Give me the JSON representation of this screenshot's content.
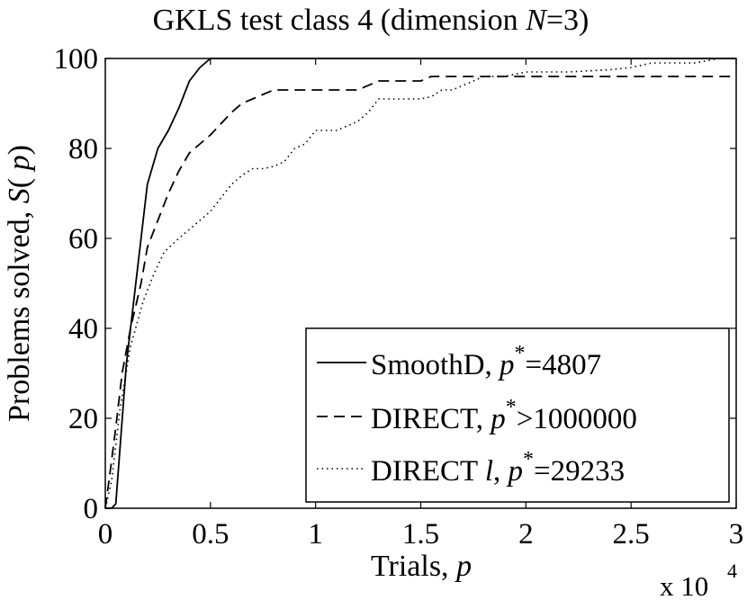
{
  "chart_data": {
    "type": "line",
    "title": {
      "prefix": "GKLS test class 4 (dimension  ",
      "var": "N",
      "suffix": "=3)"
    },
    "xlabel": {
      "text": "Trials,  ",
      "var": "p"
    },
    "ylabel": {
      "text": "Problems solved,  ",
      "func": "S",
      "open": "( ",
      "var": "p",
      "close": ")"
    },
    "x_multiplier": {
      "text": "x 10",
      "exp": "4"
    },
    "xlim": [
      0,
      30000
    ],
    "ylim": [
      0,
      100
    ],
    "xticks": [
      {
        "value": 0,
        "label": "0"
      },
      {
        "value": 5000,
        "label": "0.5"
      },
      {
        "value": 10000,
        "label": "1"
      },
      {
        "value": 15000,
        "label": "1.5"
      },
      {
        "value": 20000,
        "label": "2"
      },
      {
        "value": 25000,
        "label": "2.5"
      },
      {
        "value": 30000,
        "label": "3"
      }
    ],
    "yticks": [
      {
        "value": 0,
        "label": "0"
      },
      {
        "value": 20,
        "label": "20"
      },
      {
        "value": 40,
        "label": "40"
      },
      {
        "value": 60,
        "label": "60"
      },
      {
        "value": 80,
        "label": "80"
      },
      {
        "value": 100,
        "label": "100"
      }
    ],
    "grid": false,
    "legend_position": "bottom-right",
    "series": [
      {
        "name": "SmoothD",
        "legend": {
          "prefix": "SmoothD,  ",
          "var": "p",
          "sup": "*",
          "suffix": "=4807"
        },
        "style": "solid",
        "color": "#000000",
        "points": [
          [
            0,
            0
          ],
          [
            300,
            0
          ],
          [
            500,
            1
          ],
          [
            1000,
            32
          ],
          [
            1500,
            52
          ],
          [
            2000,
            72
          ],
          [
            2500,
            80
          ],
          [
            3000,
            84
          ],
          [
            3500,
            89
          ],
          [
            4000,
            95
          ],
          [
            4500,
            98
          ],
          [
            5000,
            100
          ],
          [
            30000,
            100
          ]
        ]
      },
      {
        "name": "DIRECT",
        "legend": {
          "prefix": "DIRECT,  ",
          "var": "p",
          "sup": "*",
          "suffix": ">1000000"
        },
        "style": "dashed",
        "color": "#000000",
        "points": [
          [
            0,
            0
          ],
          [
            200,
            7
          ],
          [
            500,
            18
          ],
          [
            800,
            30
          ],
          [
            1200,
            40
          ],
          [
            1700,
            50
          ],
          [
            2000,
            58
          ],
          [
            2500,
            64
          ],
          [
            3000,
            70
          ],
          [
            3500,
            75
          ],
          [
            4000,
            79
          ],
          [
            4500,
            81
          ],
          [
            5000,
            83
          ],
          [
            6000,
            88
          ],
          [
            6500,
            90
          ],
          [
            7000,
            91
          ],
          [
            8000,
            93
          ],
          [
            9000,
            93
          ],
          [
            10000,
            93
          ],
          [
            11000,
            93
          ],
          [
            12000,
            93
          ],
          [
            13000,
            95
          ],
          [
            15000,
            95
          ],
          [
            15500,
            96
          ],
          [
            30000,
            96
          ]
        ]
      },
      {
        "name": "DIRECT l",
        "legend": {
          "prefix": "DIRECT ",
          "var": "l",
          "mid": ",  ",
          "var2": "p",
          "sup": "*",
          "suffix": "=29233"
        },
        "style": "dotted",
        "color": "#000000",
        "points": [
          [
            0,
            0
          ],
          [
            300,
            6
          ],
          [
            700,
            22
          ],
          [
            1200,
            36
          ],
          [
            1800,
            46
          ],
          [
            2300,
            52
          ],
          [
            2800,
            57
          ],
          [
            3500,
            60
          ],
          [
            4000,
            62
          ],
          [
            4500,
            64
          ],
          [
            5000,
            66
          ],
          [
            5500,
            69
          ],
          [
            6000,
            72
          ],
          [
            6500,
            74
          ],
          [
            7000,
            75.5
          ],
          [
            7500,
            75.5
          ],
          [
            8000,
            76
          ],
          [
            8500,
            77
          ],
          [
            9000,
            80
          ],
          [
            9500,
            81
          ],
          [
            10000,
            84
          ],
          [
            10500,
            84
          ],
          [
            11000,
            84
          ],
          [
            11500,
            85
          ],
          [
            12000,
            86
          ],
          [
            12500,
            88
          ],
          [
            13000,
            91
          ],
          [
            13500,
            91
          ],
          [
            14000,
            91
          ],
          [
            14500,
            91
          ],
          [
            15000,
            91
          ],
          [
            15500,
            91.5
          ],
          [
            16000,
            93
          ],
          [
            16500,
            93
          ],
          [
            17000,
            94
          ],
          [
            17500,
            95
          ],
          [
            18000,
            96
          ],
          [
            19000,
            96
          ],
          [
            20000,
            97
          ],
          [
            22000,
            97
          ],
          [
            24000,
            97.5
          ],
          [
            25000,
            98
          ],
          [
            26000,
            99
          ],
          [
            28000,
            99
          ],
          [
            29233,
            100
          ],
          [
            30000,
            100
          ]
        ]
      }
    ]
  }
}
